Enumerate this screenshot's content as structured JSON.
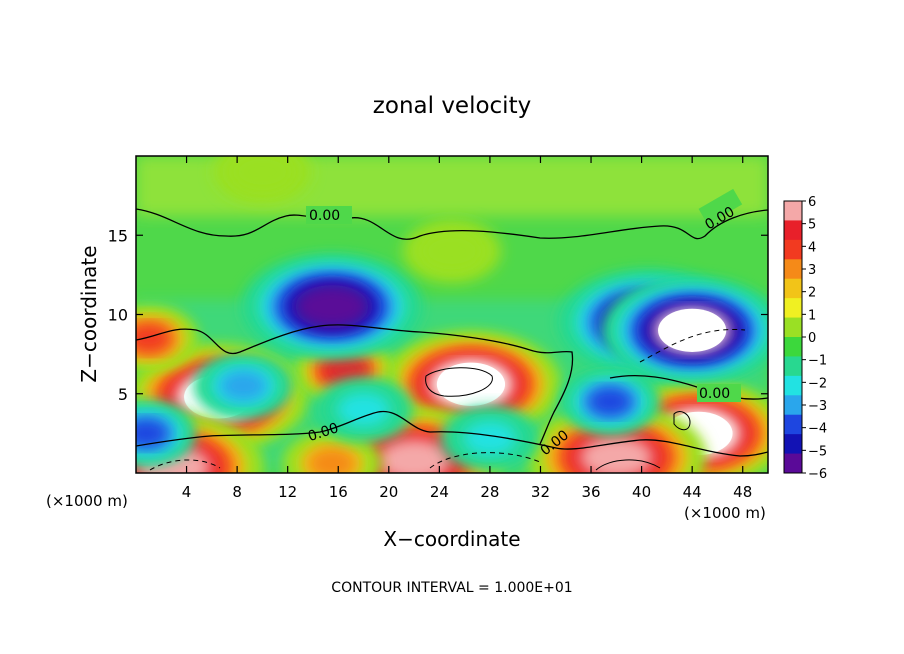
{
  "chart_data": {
    "type": "heatmap",
    "title": "zonal velocity",
    "xlabel": "X−coordinate",
    "ylabel": "Z−coordinate",
    "x_unit_left": "(×1000 m)",
    "x_unit_right": "(×1000 m)",
    "xlim": [
      0,
      50
    ],
    "ylim": [
      0,
      20
    ],
    "x_ticks": [
      4,
      8,
      12,
      16,
      20,
      24,
      28,
      32,
      36,
      40,
      44,
      48
    ],
    "y_ticks": [
      5,
      10,
      15
    ],
    "colorbar": {
      "levels": [
        -6,
        -5,
        -4,
        -3,
        -2,
        -1,
        0,
        1,
        2,
        3,
        4,
        5,
        6
      ],
      "labels": [
        "6",
        "5",
        "4",
        "3",
        "2",
        "1",
        "0",
        "−1",
        "−2",
        "−3",
        "−4",
        "−5",
        "−6"
      ],
      "colors": [
        "#f4a8a8",
        "#e8202a",
        "#f23a20",
        "#f58a18",
        "#f2c418",
        "#f0f022",
        "#9ae024",
        "#3cd83c",
        "#28d890",
        "#22e2e2",
        "#2aa6ec",
        "#1e46e0",
        "#1212b4",
        "#5a0a98"
      ]
    },
    "contour_interval": "CONTOUR INTERVAL = 1.000E+01",
    "contour_labels": [
      "0.00",
      "0.00",
      "0.00",
      "0.00",
      "0.00"
    ],
    "features": [
      {
        "kind": "blob",
        "x": 6.5,
        "z": 4.8,
        "value": 7
      },
      {
        "kind": "blob",
        "x": 26.5,
        "z": 5.6,
        "value": 7
      },
      {
        "kind": "blob",
        "x": 44.5,
        "z": 2.5,
        "value": 7
      },
      {
        "kind": "blob",
        "x": 22.0,
        "z": 0.8,
        "value": 6
      },
      {
        "kind": "blob",
        "x": 38.0,
        "z": 1.0,
        "value": 6
      },
      {
        "kind": "blob",
        "x": 15.5,
        "z": 0.6,
        "value": 3
      },
      {
        "kind": "blob",
        "x": 3.0,
        "z": 0.4,
        "value": 6
      },
      {
        "kind": "blob",
        "x": 16.5,
        "z": 6.5,
        "value": 5
      },
      {
        "kind": "blob",
        "x": 1.0,
        "z": 8.5,
        "value": 4
      },
      {
        "kind": "blob",
        "x": 15.5,
        "z": 10.5,
        "value": -6
      },
      {
        "kind": "blob",
        "x": 40.5,
        "z": 9.5,
        "value": -6
      },
      {
        "kind": "blob",
        "x": 44.0,
        "z": 9.0,
        "value": -7
      },
      {
        "kind": "blob",
        "x": 0.8,
        "z": 2.5,
        "value": -4
      },
      {
        "kind": "blob",
        "x": 8.5,
        "z": 5.5,
        "value": -3
      },
      {
        "kind": "blob",
        "x": 37.5,
        "z": 4.5,
        "value": -4
      },
      {
        "kind": "blob",
        "x": 28.0,
        "z": 2.2,
        "value": -2
      },
      {
        "kind": "blob",
        "x": 18.0,
        "z": 4.0,
        "value": -2
      },
      {
        "kind": "blob",
        "x": 25.0,
        "z": 14.0,
        "value": 0.5
      },
      {
        "kind": "blob",
        "x": 10.0,
        "z": 19.0,
        "value": 1
      }
    ]
  }
}
